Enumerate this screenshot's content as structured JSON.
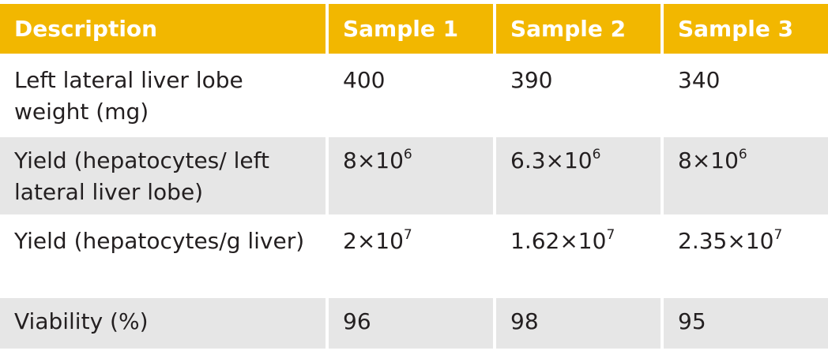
{
  "table": {
    "header": [
      "Description",
      "Sample 1",
      "Sample 2",
      "Sample 3"
    ],
    "rows": [
      [
        "Left lateral liver lobe weight (mg)",
        "400",
        "390",
        "340"
      ],
      [
        "Yield (hepatocytes/ left lateral liver lobe)",
        {
          "base": "8×10",
          "exp": "6"
        },
        {
          "base": "6.3×10",
          "exp": "6"
        },
        {
          "base": "8×10",
          "exp": "6"
        }
      ],
      [
        "Yield (hepatocytes/g liver)",
        {
          "base": "2×10",
          "exp": "7"
        },
        {
          "base": "1.62×10",
          "exp": "7"
        },
        {
          "base": "2.35×10",
          "exp": "7"
        }
      ],
      [
        "Viability (%)",
        "96",
        "98",
        "95"
      ]
    ]
  }
}
